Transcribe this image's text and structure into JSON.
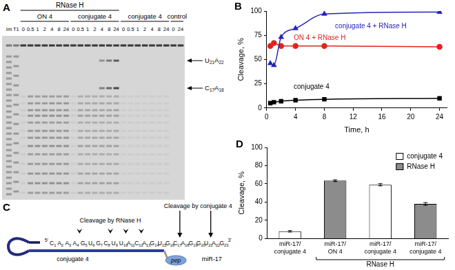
{
  "chart_data": [
    {
      "title": "B",
      "type": "line",
      "x_label": "Time, h",
      "y_label": "Cleavage, %",
      "xlim": [
        0,
        25
      ],
      "xticks": [
        0,
        4,
        8,
        12,
        16,
        20,
        24
      ],
      "ylim": [
        0,
        100
      ],
      "yticks": [
        0,
        25,
        50,
        75,
        100
      ],
      "grid": false,
      "series": [
        {
          "name": "conjugate 4 + RNase H",
          "color": "#2424b8",
          "marker": "triangle",
          "x": [
            0.5,
            1,
            2,
            4,
            8,
            24
          ],
          "values": [
            46,
            44,
            73,
            82,
            97,
            99
          ]
        },
        {
          "name": "ON 4 + RNase H",
          "color": "#e0241c",
          "marker": "circle",
          "x": [
            0.5,
            1,
            2,
            4,
            8,
            24
          ],
          "values": [
            64,
            67,
            64,
            64,
            64,
            63
          ]
        },
        {
          "name": "conjugate 4",
          "color": "#000000",
          "marker": "square",
          "x": [
            0.5,
            1,
            2,
            4,
            8,
            24
          ],
          "values": [
            5,
            6,
            7,
            8,
            9,
            10
          ]
        }
      ]
    },
    {
      "title": "D",
      "type": "bar",
      "y_label": "Cleavage, %",
      "categories": [
        "miR-17/conjugate 4",
        "miR-17/ON 4",
        "miR-17/conjugate 4",
        "miR-17/conjugate 4"
      ],
      "ylim": [
        0,
        100
      ],
      "yticks": [
        0,
        20,
        40,
        60,
        80,
        100
      ],
      "grid": false,
      "legend": "upper right",
      "series": [
        {
          "name": "conjugate 4",
          "color": "#ffffff",
          "values": [
            8,
            null,
            59,
            null
          ],
          "errors": [
            0.8,
            null,
            1.2,
            null
          ]
        },
        {
          "name": "RNase H",
          "color": "#8c8c8c",
          "values": [
            null,
            63.5,
            null,
            38
          ],
          "errors": [
            null,
            1.0,
            null,
            1.5
          ]
        }
      ],
      "annotations": [
        "RNase H"
      ]
    }
  ],
  "gel": {
    "panel": "A",
    "header": "RNase H",
    "marker_lanes": [
      "Im",
      "T1"
    ],
    "groups": [
      {
        "label": "ON 4",
        "rnase_h": true,
        "lanes": [
          "0",
          "0.5",
          "1",
          "2",
          "4",
          "8",
          "24"
        ]
      },
      {
        "label": "conjugate 4",
        "rnase_h": true,
        "lanes": [
          "0",
          "0.5",
          "1",
          "2",
          "4",
          "8",
          "24"
        ]
      },
      {
        "label": "conjugate 4",
        "rnase_h": false,
        "lanes": [
          "0",
          "0.5",
          "1",
          "2",
          "4",
          "8",
          "24"
        ]
      },
      {
        "label": "control",
        "rnase_h": false,
        "lanes": [
          "0",
          "24"
        ]
      }
    ],
    "products": [
      "U21A22",
      "C17A18"
    ]
  },
  "diagram": {
    "panel": "C",
    "strand_label": "conjugate 4",
    "peptide": "pep",
    "target": "miR-17",
    "five_end": "5'",
    "three_end": "3'",
    "sequence": [
      {
        "base": "C",
        "pos": 1
      },
      {
        "base": "A",
        "pos": 2
      },
      {
        "base": "A",
        "pos": 3
      },
      {
        "base": "A",
        "pos": 4
      },
      {
        "base": "G",
        "pos": 5
      },
      {
        "base": "U",
        "pos": 6
      },
      {
        "base": "G",
        "pos": 7
      },
      {
        "base": "C",
        "pos": 8
      },
      {
        "base": "U",
        "pos": 9
      },
      {
        "base": "U",
        "pos": 10
      },
      {
        "base": "A",
        "pos": 11
      },
      {
        "base": "C",
        "pos": 12
      },
      {
        "base": "A",
        "pos": 13
      },
      {
        "base": "G",
        "pos": 14
      },
      {
        "base": "U",
        "pos": 15
      },
      {
        "base": "G",
        "pos": 16
      },
      {
        "base": "C",
        "pos": 17
      },
      {
        "base": "A",
        "pos": 18
      },
      {
        "base": "G",
        "pos": 19
      },
      {
        "base": "G",
        "pos": 20
      },
      {
        "base": "U",
        "pos": 21
      },
      {
        "base": "A",
        "pos": 22
      },
      {
        "base": "G",
        "pos": 23
      }
    ],
    "rnase_h_label": "Cleavage by RNase H",
    "rnase_h_sites": [
      4,
      8,
      10,
      12
    ],
    "conjugate_label": "Cleavage by conjugate 4",
    "conjugate_sites": [
      17,
      21
    ]
  }
}
